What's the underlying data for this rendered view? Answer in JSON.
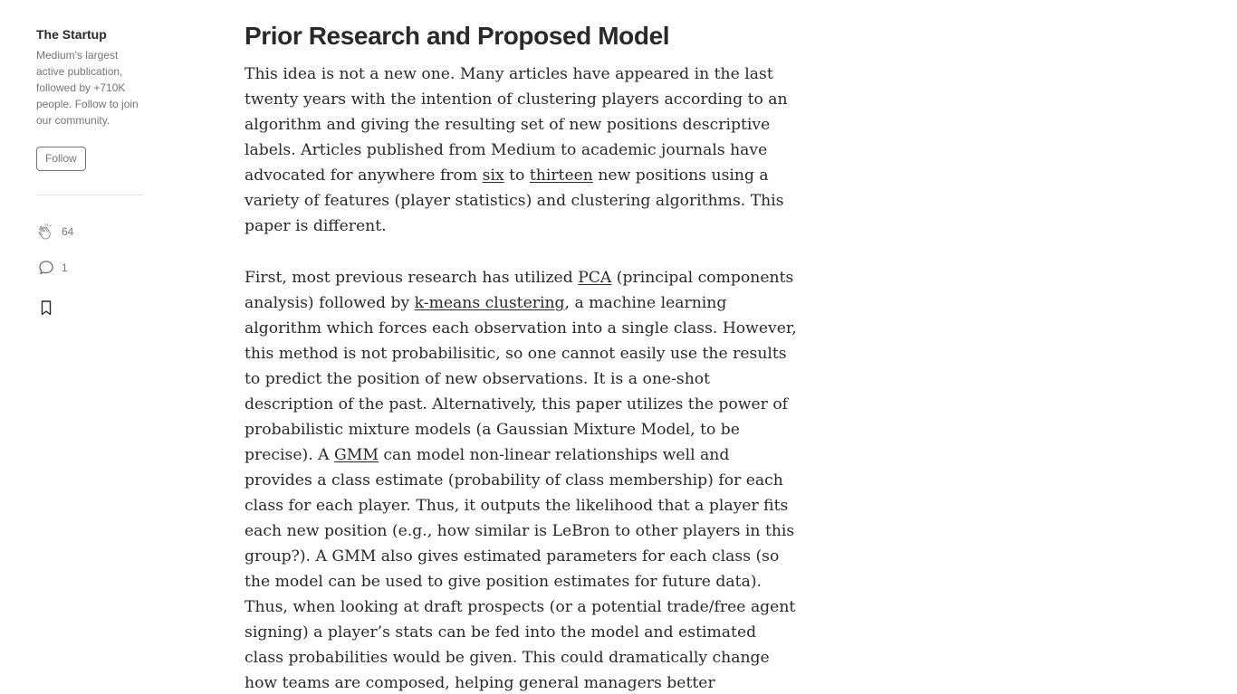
{
  "sidebar": {
    "publication_name": "The Startup",
    "publication_description": "Medium's largest active publication, followed by +710K people. Follow to join our community.",
    "follow_label": "Follow",
    "claps_count": "64",
    "responses_count": "1",
    "icons": {
      "clap": "clap-icon",
      "response": "response-icon",
      "bookmark": "bookmark-icon"
    }
  },
  "article": {
    "heading": "Prior Research and Proposed Model",
    "p1": {
      "t1": "This idea is not a new one. Many articles have appeared in the last twenty years with the intention of clustering players according to an algorithm and giving the resulting set of new positions descriptive labels. Articles published from Medium to academic journals have advocated for anywhere from ",
      "link_six": "six",
      "t2": " to ",
      "link_thirteen": "thirteen",
      "t3": " new positions using a variety of features (player statistics) and clustering algorithms. This paper is different."
    },
    "p2": {
      "t1": "First, most previous research has utilized ",
      "link_pca": "PCA",
      "t2": " (principal components analysis) followed by ",
      "link_kmeans": "k-means clustering",
      "t3": ", a machine learning algorithm which forces each observation into a single class. However, this method is not probabilisitic, so one cannot easily use the results to predict the position of new observations. It is a one-shot description of the past. Alternatively, this paper utilizes the power of probabilistic mixture models (a Gaussian Mixture Model, to be precise). A ",
      "link_gmm": "GMM",
      "t4": " can model non-linear relationships well and provides a class estimate (probability of class membership) for each class for each player. Thus, it outputs the likelihood that a player fits each new position (e.g., how similar is LeBron to other players in this group?). A GMM also gives estimated parameters for each class (so the model can be used to give position estimates for future data). Thus, when looking at draft prospects (or a potential trade/free agent signing) a player’s stats can be fed into the model and estimated class probabilities would be given. This could dramatically change how teams are composed, helping general managers better understand how a new player will ‘fit’ with the others."
    }
  },
  "colors": {
    "text": "#292929",
    "muted": "#757575",
    "divider": "#e6e6e6"
  }
}
